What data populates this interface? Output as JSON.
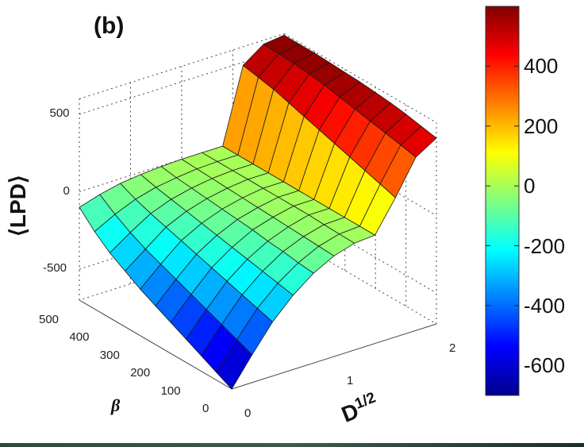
{
  "chart_data": {
    "type": "surface",
    "panel_label": "(b)",
    "zlabel": "⟨LPD⟩",
    "xlabel": "β",
    "ylabel": {
      "base": "D",
      "sup": "1/2"
    },
    "x_ticks": [
      "0",
      "100",
      "200",
      "300",
      "400",
      "500"
    ],
    "y_ticks": [
      "0",
      "1",
      "2"
    ],
    "z_ticks": [
      "500",
      "0",
      "-500"
    ],
    "colorbar_ticks": [
      "400",
      "200",
      "0",
      "-200",
      "-400",
      "-600"
    ],
    "colorbar_range": [
      -700,
      600
    ],
    "x_range": [
      0,
      500
    ],
    "y_range": [
      0,
      2
    ],
    "z_range": [
      -700,
      600
    ],
    "colormap": "jet",
    "grid": true,
    "surface_grid": {
      "beta": [
        0,
        50,
        100,
        150,
        200,
        250,
        300,
        350,
        400,
        450,
        500
      ],
      "sqrtD": [
        0,
        0.2,
        0.4,
        0.6,
        0.8,
        1.0,
        1.2,
        1.4,
        1.6,
        1.8,
        2.0
      ],
      "lpd": [
        [
          -700,
          -520,
          -350,
          -220,
          -120,
          -50,
          -10,
          0,
          200,
          420,
          500
        ],
        [
          -650,
          -480,
          -320,
          -200,
          -110,
          -45,
          -8,
          0,
          230,
          440,
          520
        ],
        [
          -600,
          -440,
          -290,
          -180,
          -95,
          -40,
          -5,
          0,
          260,
          460,
          540
        ],
        [
          -550,
          -400,
          -260,
          -160,
          -85,
          -35,
          0,
          0,
          290,
          480,
          555
        ],
        [
          -500,
          -360,
          -230,
          -140,
          -70,
          -30,
          0,
          0,
          320,
          500,
          565
        ],
        [
          -450,
          -320,
          -200,
          -120,
          -60,
          -25,
          0,
          0,
          350,
          520,
          575
        ],
        [
          -400,
          -280,
          -170,
          -100,
          -50,
          -20,
          0,
          0,
          380,
          540,
          580
        ],
        [
          -340,
          -240,
          -140,
          -80,
          -40,
          -15,
          0,
          0,
          410,
          555,
          585
        ],
        [
          -280,
          -190,
          -110,
          -60,
          -30,
          -10,
          0,
          0,
          440,
          565,
          590
        ],
        [
          -200,
          -130,
          -75,
          -40,
          -20,
          -5,
          0,
          0,
          460,
          570,
          590
        ],
        [
          -100,
          -60,
          -30,
          -15,
          -5,
          0,
          0,
          0,
          480,
          575,
          590
        ]
      ]
    }
  }
}
